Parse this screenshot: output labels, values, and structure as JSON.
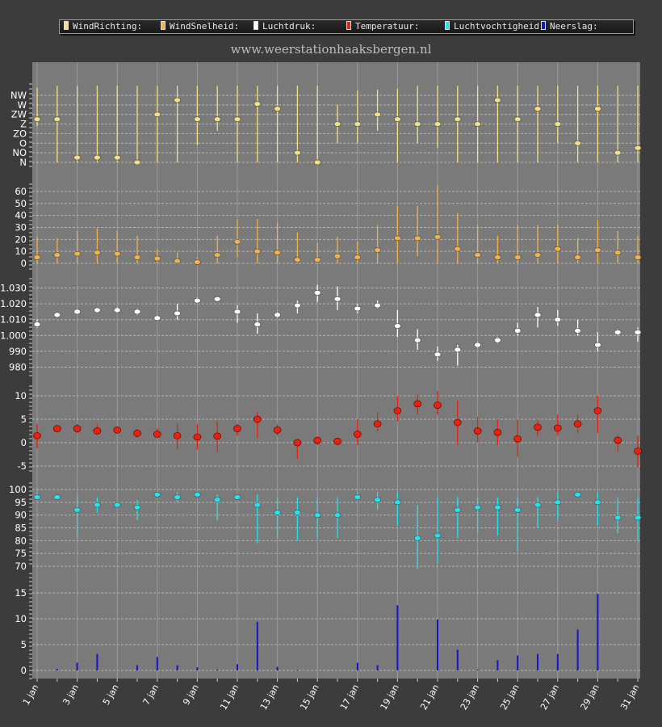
{
  "website": "www.weerstationhaaksbergen.nl",
  "legend": [
    {
      "label": "WindRichting:",
      "color": "#f2e086"
    },
    {
      "label": "WindSnelheid:",
      "color": "#f0b24f"
    },
    {
      "label": "Luchtdruk:",
      "color": "#ffffff"
    },
    {
      "label": "Temperatuur:",
      "color": "#e8220e"
    },
    {
      "label": "Luchtvochtigheid:",
      "color": "#25e3ee"
    },
    {
      "label": "Neerslag:",
      "color": "#1515c8"
    }
  ],
  "chart_data": {
    "type": "multi-panel",
    "x_tick_labels": [
      "1 jan",
      "3 jan",
      "5 jan",
      "7 jan",
      "9 jan",
      "11 jan",
      "13 jan",
      "15 jan",
      "17 jan",
      "19 jan",
      "21 jan",
      "23 jan",
      "25 jan",
      "27 jan",
      "29 jan",
      "31 jan"
    ],
    "days": [
      1,
      2,
      3,
      4,
      5,
      6,
      7,
      8,
      9,
      10,
      11,
      12,
      13,
      14,
      15,
      16,
      17,
      18,
      19,
      20,
      21,
      22,
      23,
      24,
      25,
      26,
      27,
      28,
      29,
      30,
      31
    ],
    "panels": [
      {
        "name": "WindRichting",
        "type": "range-dot",
        "color": "#f2e086",
        "scale": "category",
        "tick_labels": [
          "N",
          "NO",
          "O",
          "ZO",
          "Z",
          "ZW",
          "W",
          "NW"
        ],
        "ylim": [
          0,
          7
        ],
        "values": [
          4.5,
          4.5,
          0.5,
          0.5,
          0.5,
          0,
          5,
          6.5,
          4.5,
          4.5,
          4.5,
          6.1,
          5.6,
          1,
          0,
          4,
          4,
          5,
          4.5,
          4,
          4,
          4.5,
          4,
          6.5,
          4.5,
          5.6,
          4,
          2,
          5.6,
          1,
          1.5
        ],
        "min": [
          3.8,
          0,
          0,
          0,
          0,
          0,
          0,
          0,
          1.8,
          3.3,
          0,
          0,
          0,
          0,
          0,
          2,
          2,
          3.3,
          0,
          2,
          1.5,
          0,
          0,
          0,
          0,
          0,
          2,
          0,
          0,
          0,
          0
        ],
        "max": [
          7.8,
          8,
          8,
          8,
          8,
          8,
          8,
          8,
          8,
          8,
          8,
          8,
          8,
          8,
          8,
          6,
          7.5,
          7.6,
          7.7,
          8,
          8,
          8,
          8,
          8,
          8,
          8,
          8,
          8,
          8,
          8,
          8
        ]
      },
      {
        "name": "WindSnelheid",
        "type": "range-dot",
        "color": "#f0b24f",
        "tick_labels": [
          "0",
          "10",
          "20",
          "30",
          "40",
          "50",
          "60"
        ],
        "ylim": [
          0,
          60
        ],
        "values": [
          5,
          7,
          8,
          9,
          8,
          5,
          4,
          2,
          1,
          7,
          18,
          10,
          9,
          3,
          3,
          6,
          5,
          11,
          21,
          21,
          22,
          12,
          7,
          5,
          5,
          7,
          12,
          5,
          11,
          9,
          5
        ],
        "min": [
          0,
          0,
          0,
          0,
          0,
          0,
          0,
          0,
          0,
          0,
          5,
          0,
          0,
          0,
          0,
          0,
          0,
          0,
          0,
          6,
          0,
          0,
          0,
          0,
          0,
          0,
          0,
          0,
          0,
          0,
          0
        ],
        "max": [
          22,
          21,
          27,
          29,
          27,
          23,
          12,
          9,
          5,
          23,
          37,
          37,
          34,
          26,
          17,
          22,
          18,
          32,
          48,
          48,
          65,
          42,
          32,
          23,
          32,
          32,
          32,
          21,
          36,
          27,
          23
        ]
      },
      {
        "name": "Luchtdruk",
        "type": "range-dot",
        "color": "#ffffff",
        "tick_labels": [
          "980",
          "990",
          "1.000",
          "1.010",
          "1.020",
          "1.030"
        ],
        "ylim": [
          975,
          1035
        ],
        "values": [
          1007,
          1013,
          1015,
          1016,
          1016,
          1015,
          1011,
          1014,
          1022,
          1023,
          1015,
          1007,
          1013,
          1019,
          1027,
          1023,
          1017,
          1019,
          1006,
          997,
          988,
          991,
          994,
          997,
          1003,
          1013,
          1010,
          1003,
          994,
          1002,
          1002
        ],
        "min": [
          1005,
          1012,
          1014,
          1015,
          1015,
          1013,
          1010,
          1010,
          1021,
          1022,
          1008,
          1001,
          1011,
          1014,
          1021,
          1016,
          1014,
          1017,
          999,
          991,
          984,
          981,
          992,
          995,
          1000,
          1005,
          1006,
          1000,
          990,
          1000,
          996
        ],
        "max": [
          1010,
          1014,
          1017,
          1017,
          1018,
          1017,
          1013,
          1020,
          1024,
          1024,
          1019,
          1014,
          1015,
          1022,
          1032,
          1031,
          1020,
          1022,
          1016,
          1004,
          993,
          994,
          996,
          999,
          1008,
          1018,
          1016,
          1010,
          1002,
          1004,
          1005
        ]
      },
      {
        "name": "Temperatuur",
        "type": "range-dot",
        "color": "#e8220e",
        "tick_labels": [
          "-5",
          "0",
          "5",
          "10"
        ],
        "ylim": [
          -7,
          12
        ],
        "values": [
          1.5,
          3,
          3,
          2.5,
          2.7,
          2,
          1.8,
          1.5,
          1.2,
          1.4,
          3,
          5,
          2.7,
          0,
          0.5,
          0.3,
          1.8,
          4,
          6.8,
          8.3,
          8,
          4.3,
          2.5,
          2.2,
          0.8,
          3.3,
          3.1,
          4,
          6.8,
          0.5,
          -1.8
        ],
        "min": [
          -1.2,
          2.4,
          2,
          2,
          2,
          1,
          1.5,
          -1.3,
          -1.5,
          -2,
          1.5,
          1,
          1.5,
          -3.5,
          -0.5,
          -0.5,
          -0.5,
          2.5,
          4.5,
          6,
          6,
          -0.5,
          0,
          -0.5,
          -3,
          1.5,
          1.5,
          2,
          2,
          -2,
          -5.3
        ],
        "max": [
          4,
          3.5,
          4,
          4,
          3.5,
          3,
          3,
          4,
          4,
          4.5,
          4,
          6.5,
          4,
          0.5,
          1,
          1,
          5,
          6.5,
          10,
          10.3,
          11,
          9,
          5.5,
          5,
          5,
          5,
          6,
          6,
          10,
          1.5,
          1.5
        ]
      },
      {
        "name": "Luchtvochtigheid",
        "type": "range-dot",
        "color": "#25e3ee",
        "tick_labels": [
          "70",
          "75",
          "80",
          "85",
          "90",
          "95",
          "100"
        ],
        "ylim": [
          68,
          100
        ],
        "values": [
          97,
          97,
          92,
          94,
          94,
          93,
          98,
          97,
          98,
          96,
          97,
          94,
          91,
          91,
          90,
          90,
          97,
          96,
          95,
          81,
          82,
          92,
          93,
          93,
          92,
          94,
          95,
          98,
          95,
          89,
          89
        ],
        "min": [
          97,
          97,
          81,
          91,
          93,
          88,
          98,
          95,
          97,
          88,
          96,
          79,
          81,
          80,
          81,
          81,
          96,
          92,
          86,
          69,
          71,
          81,
          83,
          82,
          76,
          85,
          88,
          97,
          86,
          83,
          80
        ],
        "max": [
          99,
          98,
          98,
          97,
          95,
          96,
          99,
          99,
          99,
          98,
          98,
          98,
          97,
          97,
          97,
          97,
          99,
          99,
          99,
          94,
          97,
          97,
          97,
          97,
          97,
          97,
          99,
          99,
          99,
          97,
          97
        ]
      },
      {
        "name": "Neerslag",
        "type": "bar",
        "color": "#1515c8",
        "tick_labels": [
          "0",
          "5",
          "10",
          "15"
        ],
        "ylim": [
          0,
          16
        ],
        "values": [
          0,
          0.3,
          1.5,
          3.2,
          0,
          1,
          2.6,
          1,
          0.6,
          0.2,
          1.2,
          9.4,
          0.7,
          0.1,
          0,
          0,
          1.5,
          1,
          12.6,
          0,
          9.9,
          4,
          0.2,
          2,
          2.9,
          3.2,
          3.2,
          7.9,
          14.8,
          0,
          0
        ]
      }
    ]
  }
}
